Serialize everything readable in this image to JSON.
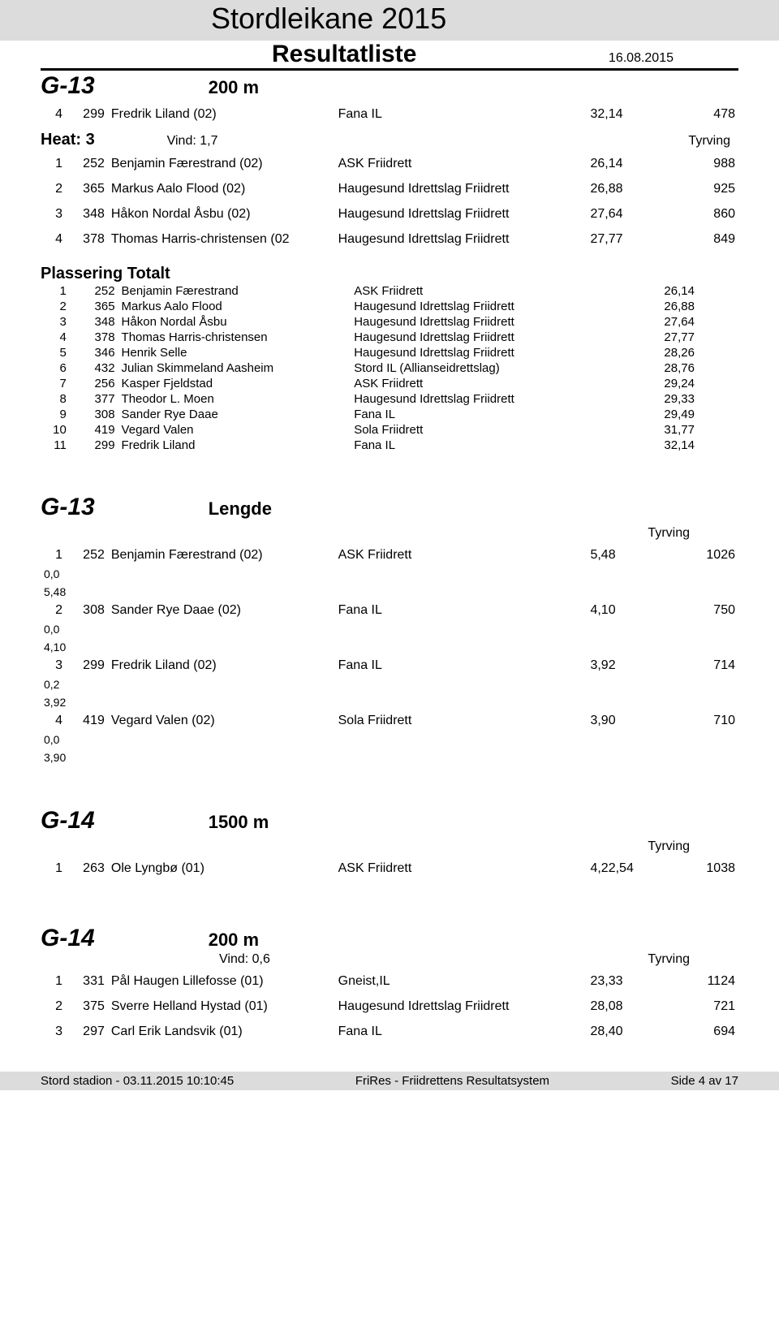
{
  "header": {
    "title": "Stordleikane 2015",
    "subtitle": "Resultatliste",
    "date": "16.08.2015"
  },
  "sections": [
    {
      "category": "G-13",
      "discipline": "200 m",
      "pre_rows": [
        {
          "place": "4",
          "bib": "299",
          "name": "Fredrik Liland (02)",
          "club": "Fana IL",
          "result": "32,14",
          "points": "478"
        }
      ],
      "heat": {
        "label": "Heat: 3",
        "wind": "Vind: 1,7",
        "tyrving": "Tyrving"
      },
      "heat_rows": [
        {
          "place": "1",
          "bib": "252",
          "name": "Benjamin Færestrand (02)",
          "club": "ASK Friidrett",
          "result": "26,14",
          "points": "988"
        },
        {
          "place": "2",
          "bib": "365",
          "name": "Markus Aalo Flood (02)",
          "club": "Haugesund Idrettslag Friidrett",
          "result": "26,88",
          "points": "925"
        },
        {
          "place": "3",
          "bib": "348",
          "name": "Håkon Nordal Åsbu (02)",
          "club": "Haugesund Idrettslag Friidrett",
          "result": "27,64",
          "points": "860"
        },
        {
          "place": "4",
          "bib": "378",
          "name": "Thomas Harris-christensen (02",
          "club": "Haugesund Idrettslag Friidrett",
          "result": "27,77",
          "points": "849"
        }
      ],
      "totalt": {
        "label": "Plassering Totalt",
        "rows": [
          {
            "place": "1",
            "bib": "252",
            "name": "Benjamin Færestrand",
            "club": "ASK Friidrett",
            "result": "26,14"
          },
          {
            "place": "2",
            "bib": "365",
            "name": "Markus Aalo Flood",
            "club": "Haugesund Idrettslag Friidrett",
            "result": "26,88"
          },
          {
            "place": "3",
            "bib": "348",
            "name": "Håkon Nordal Åsbu",
            "club": "Haugesund Idrettslag Friidrett",
            "result": "27,64"
          },
          {
            "place": "4",
            "bib": "378",
            "name": "Thomas Harris-christensen",
            "club": "Haugesund Idrettslag Friidrett",
            "result": "27,77"
          },
          {
            "place": "5",
            "bib": "346",
            "name": "Henrik Selle",
            "club": "Haugesund Idrettslag Friidrett",
            "result": "28,26"
          },
          {
            "place": "6",
            "bib": "432",
            "name": "Julian Skimmeland Aasheim",
            "club": "Stord IL (Allianseidrettslag)",
            "result": "28,76"
          },
          {
            "place": "7",
            "bib": "256",
            "name": "Kasper Fjeldstad",
            "club": "ASK Friidrett",
            "result": "29,24"
          },
          {
            "place": "8",
            "bib": "377",
            "name": "Theodor L. Moen",
            "club": "Haugesund Idrettslag Friidrett",
            "result": "29,33"
          },
          {
            "place": "9",
            "bib": "308",
            "name": "Sander Rye Daae",
            "club": "Fana IL",
            "result": "29,49"
          },
          {
            "place": "10",
            "bib": "419",
            "name": "Vegard Valen",
            "club": "Sola Friidrett",
            "result": "31,77"
          },
          {
            "place": "11",
            "bib": "299",
            "name": "Fredrik Liland",
            "club": "Fana IL",
            "result": "32,14"
          }
        ]
      }
    }
  ],
  "lengde": {
    "category": "G-13",
    "discipline": "Lengde",
    "tyrving": "Tyrving",
    "rows": [
      {
        "place": "1",
        "bib": "252",
        "name": "Benjamin Færestrand (02)",
        "club": "ASK Friidrett",
        "result": "5,48",
        "points": "1026",
        "wind": "0,0",
        "best": "5,48"
      },
      {
        "place": "2",
        "bib": "308",
        "name": "Sander Rye Daae (02)",
        "club": "Fana IL",
        "result": "4,10",
        "points": "750",
        "wind": "0,0",
        "best": "4,10"
      },
      {
        "place": "3",
        "bib": "299",
        "name": "Fredrik Liland (02)",
        "club": "Fana IL",
        "result": "3,92",
        "points": "714",
        "wind": "0,2",
        "best": "3,92"
      },
      {
        "place": "4",
        "bib": "419",
        "name": "Vegard Valen (02)",
        "club": "Sola Friidrett",
        "result": "3,90",
        "points": "710",
        "wind": "0,0",
        "best": "3,90"
      }
    ]
  },
  "event1500": {
    "category": "G-14",
    "discipline": "1500 m",
    "tyrving": "Tyrving",
    "rows": [
      {
        "place": "1",
        "bib": "263",
        "name": "Ole Lyngbø (01)",
        "club": "ASK Friidrett",
        "result": "4,22,54",
        "points": "1038"
      }
    ]
  },
  "event200": {
    "category": "G-14",
    "discipline": "200 m",
    "wind": "Vind: 0,6",
    "tyrving": "Tyrving",
    "rows": [
      {
        "place": "1",
        "bib": "331",
        "name": "Pål Haugen Lillefosse (01)",
        "club": "Gneist,IL",
        "result": "23,33",
        "points": "1124"
      },
      {
        "place": "2",
        "bib": "375",
        "name": "Sverre Helland Hystad (01)",
        "club": "Haugesund Idrettslag Friidrett",
        "result": "28,08",
        "points": "721"
      },
      {
        "place": "3",
        "bib": "297",
        "name": "Carl Erik Landsvik (01)",
        "club": "Fana IL",
        "result": "28,40",
        "points": "694"
      }
    ]
  },
  "footer": {
    "left": "Stord stadion - 03.11.2015 10:10:45",
    "center": "FriRes - Friidrettens Resultatsystem",
    "right": "Side 4 av 17"
  }
}
